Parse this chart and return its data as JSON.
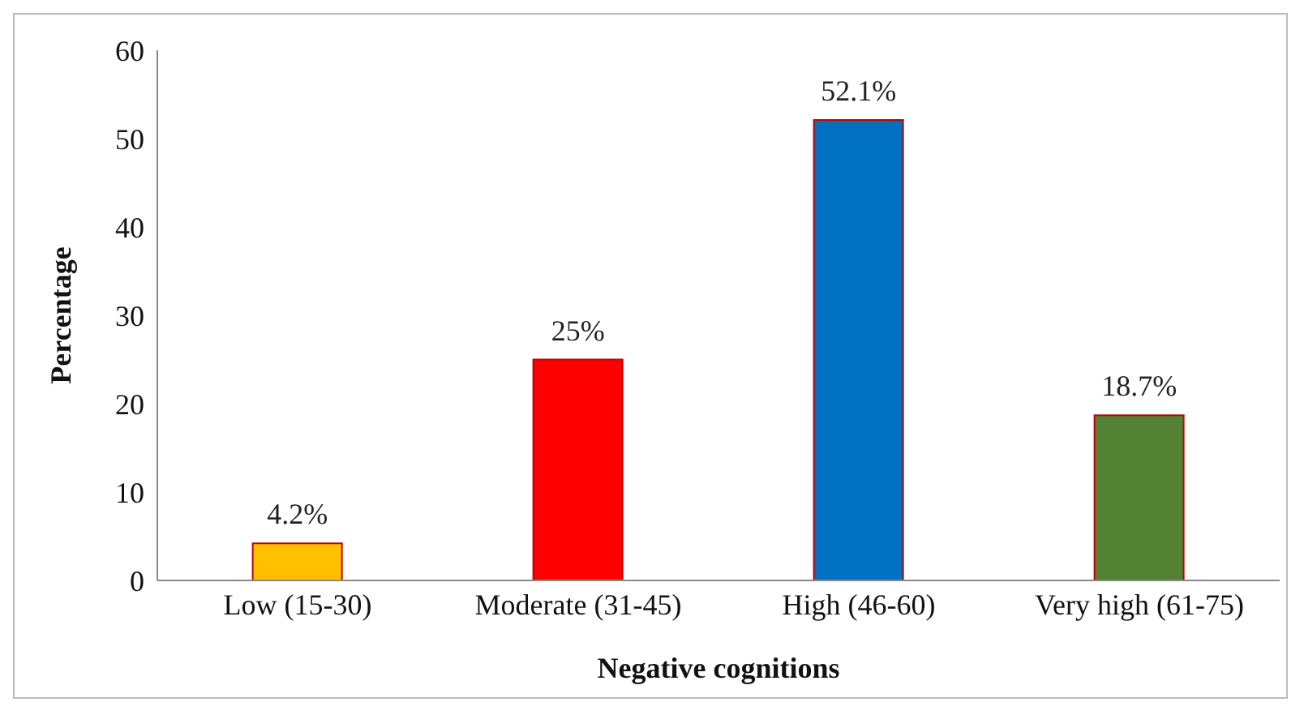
{
  "chart_data": {
    "type": "bar",
    "xlabel": "Negative cognitions",
    "ylabel": "Percentage",
    "categories": [
      "Low (15-30)",
      "Moderate (31-45)",
      "High (46-60)",
      "Very high (61-75)"
    ],
    "values": [
      4.2,
      25,
      52.1,
      18.7
    ],
    "colors": [
      "#ffc000",
      "#ff0000",
      "#0070c0",
      "#548235"
    ],
    "value_labels": [
      "4.2%",
      "25%",
      "52.1%",
      "18.7%"
    ],
    "ylim": [
      0,
      60
    ],
    "yticks": [
      0,
      10,
      20,
      30,
      40,
      50,
      60
    ],
    "grid": false,
    "legend": false
  }
}
